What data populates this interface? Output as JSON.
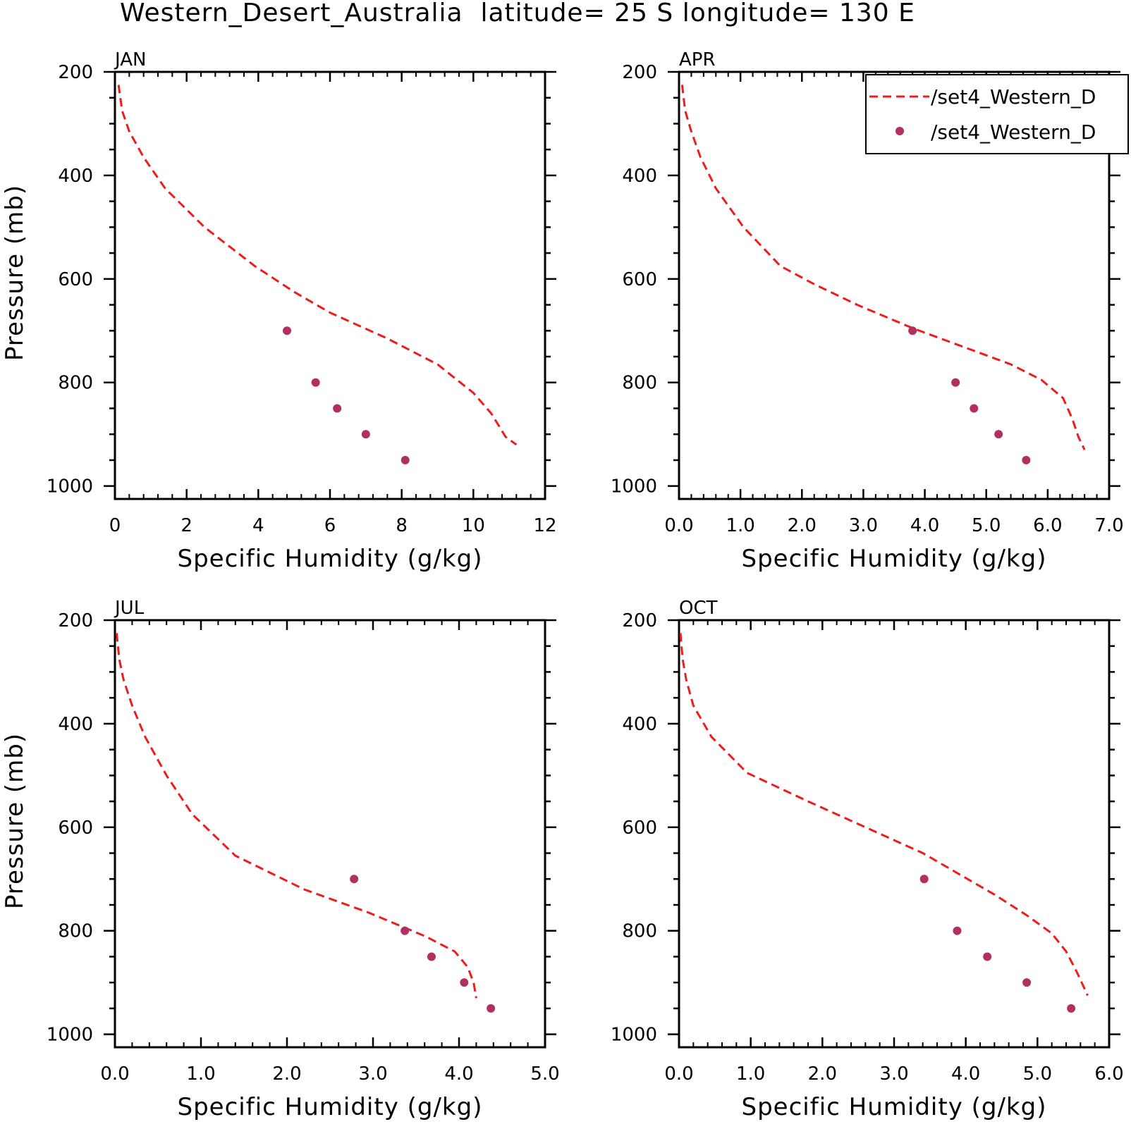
{
  "title": "Western_Desert_Australia  latitude= 25 S longitude= 130 E",
  "colors": {
    "model": "#ee1c1c",
    "obs": "#b03060",
    "axis": "#000000"
  },
  "legend": {
    "placement": "top-right of APR panel",
    "entries": [
      {
        "label": "/set4_Western_D",
        "style": "dashed-line"
      },
      {
        "label": "/set4_Western_D",
        "style": "dot"
      }
    ]
  },
  "chart_data": [
    {
      "type": "line",
      "title": "JAN",
      "xlabel": "Specific Humidity (g/kg)",
      "ylabel": "Pressure (mb)",
      "xlim": [
        0,
        12
      ],
      "ylim": [
        1025,
        200
      ],
      "y_inverted": true,
      "xticks": [
        0,
        2,
        4,
        6,
        8,
        10,
        12
      ],
      "xtick_labels": [
        "0",
        "2",
        "4",
        "6",
        "8",
        "10",
        "12"
      ],
      "yticks": [
        200,
        400,
        600,
        800,
        1000
      ],
      "ytick_labels": [
        "200",
        "400",
        "600",
        "800",
        "1000"
      ],
      "series": [
        {
          "style": "dashed-line",
          "x": [
            0.1,
            0.2,
            0.4,
            0.8,
            1.4,
            2.5,
            3.9,
            5.0,
            6.0,
            7.6,
            9.0,
            10.0,
            10.5,
            10.9,
            11.2
          ],
          "y": [
            225,
            275,
            315,
            365,
            425,
            500,
            575,
            625,
            665,
            715,
            765,
            820,
            860,
            905,
            920
          ]
        },
        {
          "style": "dots",
          "x": [
            4.8,
            5.6,
            6.2,
            7.0,
            8.1
          ],
          "y": [
            700,
            800,
            850,
            900,
            950
          ]
        }
      ]
    },
    {
      "type": "line",
      "title": "APR",
      "xlabel": "Specific Humidity (g/kg)",
      "ylabel": "",
      "xlim": [
        0,
        7
      ],
      "ylim": [
        1025,
        200
      ],
      "y_inverted": true,
      "xticks": [
        0,
        1,
        2,
        3,
        4,
        5,
        6,
        7
      ],
      "xtick_labels": [
        "0.0",
        "1.0",
        "2.0",
        "3.0",
        "4.0",
        "5.0",
        "6.0",
        "7.0"
      ],
      "yticks": [
        200,
        400,
        600,
        800,
        1000
      ],
      "ytick_labels": [
        "200",
        "400",
        "600",
        "800",
        "1000"
      ],
      "series": [
        {
          "style": "dashed-line",
          "x": [
            0.05,
            0.1,
            0.2,
            0.35,
            0.6,
            1.05,
            1.65,
            2.2,
            2.9,
            3.8,
            4.6,
            5.4,
            5.9,
            6.25,
            6.4,
            6.5,
            6.6
          ],
          "y": [
            225,
            275,
            315,
            365,
            425,
            500,
            575,
            610,
            650,
            695,
            730,
            765,
            795,
            830,
            870,
            905,
            930
          ]
        },
        {
          "style": "dots",
          "x": [
            3.8,
            4.5,
            4.8,
            5.2,
            5.65
          ],
          "y": [
            700,
            800,
            850,
            900,
            950
          ]
        }
      ]
    },
    {
      "type": "line",
      "title": "JUL",
      "xlabel": "Specific Humidity (g/kg)",
      "ylabel": "Pressure (mb)",
      "xlim": [
        0,
        5
      ],
      "ylim": [
        1025,
        200
      ],
      "y_inverted": true,
      "xticks": [
        0,
        1,
        2,
        3,
        4,
        5
      ],
      "xtick_labels": [
        "0.0",
        "1.0",
        "2.0",
        "3.0",
        "4.0",
        "5.0"
      ],
      "yticks": [
        200,
        400,
        600,
        800,
        1000
      ],
      "ytick_labels": [
        "200",
        "400",
        "600",
        "800",
        "1000"
      ],
      "series": [
        {
          "style": "dashed-line",
          "x": [
            0.02,
            0.05,
            0.1,
            0.2,
            0.35,
            0.6,
            0.9,
            1.4,
            2.2,
            2.95,
            3.6,
            3.95,
            4.1,
            4.17,
            4.2
          ],
          "y": [
            225,
            275,
            315,
            365,
            425,
            500,
            575,
            655,
            720,
            765,
            810,
            840,
            870,
            900,
            930
          ]
        },
        {
          "style": "dots",
          "x": [
            2.78,
            3.37,
            3.68,
            4.06,
            4.37
          ],
          "y": [
            700,
            800,
            850,
            900,
            950
          ]
        }
      ]
    },
    {
      "type": "line",
      "title": "OCT",
      "xlabel": "Specific Humidity (g/kg)",
      "ylabel": "",
      "xlim": [
        0,
        6
      ],
      "ylim": [
        1025,
        200
      ],
      "y_inverted": true,
      "xticks": [
        0,
        1,
        2,
        3,
        4,
        5,
        6
      ],
      "xtick_labels": [
        "0.0",
        "1.0",
        "2.0",
        "3.0",
        "4.0",
        "5.0",
        "6.0"
      ],
      "yticks": [
        200,
        400,
        600,
        800,
        1000
      ],
      "ytick_labels": [
        "200",
        "400",
        "600",
        "800",
        "1000"
      ],
      "series": [
        {
          "style": "dashed-line",
          "x": [
            0.02,
            0.05,
            0.1,
            0.2,
            0.45,
            0.95,
            1.8,
            2.6,
            3.4,
            3.9,
            4.4,
            4.85,
            5.2,
            5.4,
            5.55,
            5.7
          ],
          "y": [
            225,
            275,
            315,
            365,
            425,
            495,
            550,
            600,
            650,
            690,
            730,
            770,
            805,
            840,
            880,
            925
          ]
        },
        {
          "style": "dots",
          "x": [
            3.42,
            3.88,
            4.3,
            4.85,
            5.47
          ],
          "y": [
            700,
            800,
            850,
            900,
            950
          ]
        }
      ]
    }
  ]
}
